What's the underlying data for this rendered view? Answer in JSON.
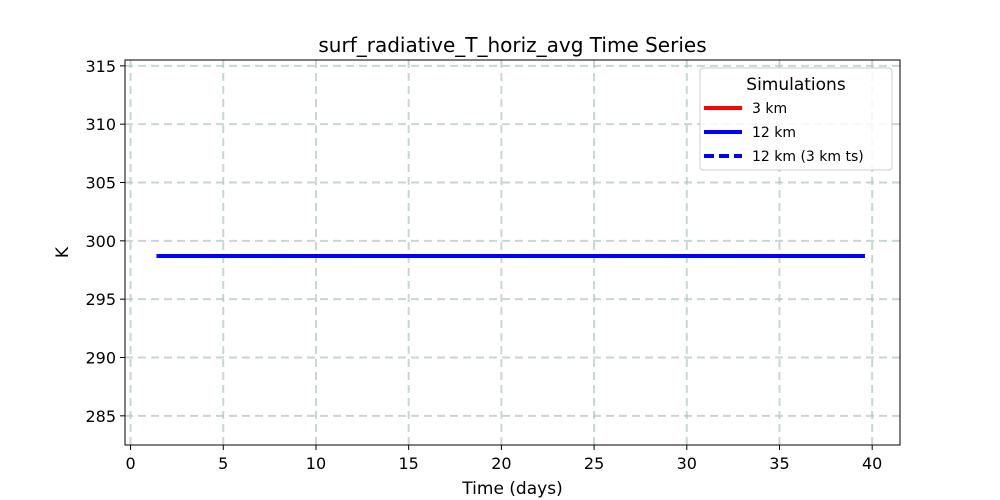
{
  "chart_data": {
    "type": "line",
    "title": "surf_radiative_T_horiz_avg Time Series",
    "xlabel": "Time (days)",
    "ylabel": "K",
    "xlim": [
      -0.3,
      41.5
    ],
    "ylim": [
      282.5,
      315.5
    ],
    "xticks": [
      0,
      5,
      10,
      15,
      20,
      25,
      30,
      35,
      40
    ],
    "yticks": [
      285,
      290,
      295,
      300,
      305,
      310,
      315
    ],
    "xtick_labels": [
      "0",
      "5",
      "10",
      "15",
      "20",
      "25",
      "30",
      "35",
      "40"
    ],
    "ytick_labels": [
      "285",
      "290",
      "295",
      "300",
      "305",
      "310",
      "315"
    ],
    "grid": true,
    "legend": {
      "title": "Simulations",
      "placement": "top-right"
    },
    "series": [
      {
        "name": "3 km",
        "color": "#ff0000",
        "style": "solid",
        "x": [
          1.4,
          39.6
        ],
        "y": [
          298.7,
          298.7
        ]
      },
      {
        "name": "12 km",
        "color": "#0000ff",
        "style": "solid",
        "x": [
          1.4,
          39.6
        ],
        "y": [
          298.7,
          298.7
        ]
      },
      {
        "name": "12 km (3 km ts)",
        "color": "#0000ff",
        "style": "dashed",
        "x": [
          1.4,
          39.6
        ],
        "y": [
          298.7,
          298.7
        ]
      }
    ]
  }
}
